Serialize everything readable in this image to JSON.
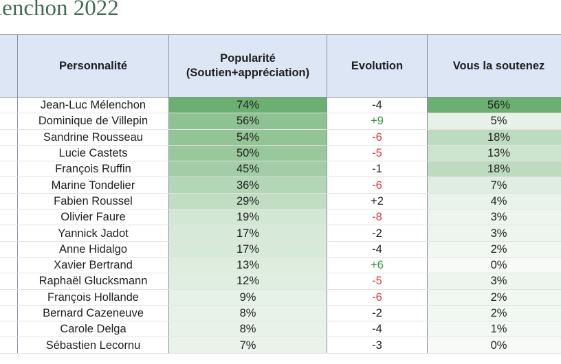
{
  "title": "lenchon 2022",
  "header": {
    "index": "",
    "personality": "Personnalité",
    "popularity_line1": "Popularité",
    "popularity_line2": "(Soutien+appréciation)",
    "evolution": "Evolution",
    "support": "Vous la soutenez"
  },
  "colors": {
    "header_bg": "#dde6f5",
    "heat_max": "#6cb071",
    "evolution_up": "#2e9a3c",
    "evolution_down": "#dd3b3b",
    "title": "#3f6b55"
  },
  "rows": [
    {
      "name": "Jean-Luc Mélenchon",
      "popularity": "74%",
      "evolution": "-4",
      "support": "56%",
      "trend": "flat"
    },
    {
      "name": "Dominique de Villepin",
      "popularity": "56%",
      "evolution": "+9",
      "support": "5%",
      "trend": "up"
    },
    {
      "name": "Sandrine Rousseau",
      "popularity": "54%",
      "evolution": "-6",
      "support": "18%",
      "trend": "down"
    },
    {
      "name": "Lucie Castets",
      "popularity": "50%",
      "evolution": "-5",
      "support": "13%",
      "trend": "down"
    },
    {
      "name": "François Ruffin",
      "popularity": "45%",
      "evolution": "-1",
      "support": "18%",
      "trend": "flat"
    },
    {
      "name": "Marine Tondelier",
      "popularity": "36%",
      "evolution": "-6",
      "support": "7%",
      "trend": "down"
    },
    {
      "name": "Fabien Roussel",
      "popularity": "29%",
      "evolution": "+2",
      "support": "4%",
      "trend": "flat"
    },
    {
      "name": "Olivier Faure",
      "popularity": "19%",
      "evolution": "-8",
      "support": "3%",
      "trend": "down"
    },
    {
      "name": "Yannick Jadot",
      "popularity": "17%",
      "evolution": "-2",
      "support": "3%",
      "trend": "flat"
    },
    {
      "name": "Anne Hidalgo",
      "popularity": "17%",
      "evolution": "-4",
      "support": "2%",
      "trend": "flat"
    },
    {
      "name": "Xavier Bertrand",
      "popularity": "13%",
      "evolution": "+6",
      "support": "0%",
      "trend": "up"
    },
    {
      "name": "Raphaël Glucksmann",
      "popularity": "12%",
      "evolution": "-5",
      "support": "3%",
      "trend": "down"
    },
    {
      "name": "François Hollande",
      "popularity": "9%",
      "evolution": "-6",
      "support": "2%",
      "trend": "down"
    },
    {
      "name": "Bernard Cazeneuve",
      "popularity": "8%",
      "evolution": "-2",
      "support": "2%",
      "trend": "flat"
    },
    {
      "name": "Carole Delga",
      "popularity": "8%",
      "evolution": "-4",
      "support": "1%",
      "trend": "flat"
    },
    {
      "name": "Sébastien Lecornu",
      "popularity": "7%",
      "evolution": "-3",
      "support": "0%",
      "trend": "flat"
    }
  ]
}
